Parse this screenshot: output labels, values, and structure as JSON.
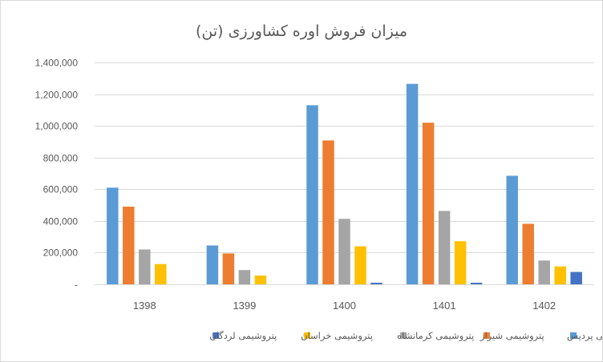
{
  "chart_data": {
    "type": "bar",
    "title": "میزان فروش اوره کشاورزی (تن)",
    "categories": [
      "1398",
      "1399",
      "1400",
      "1401",
      "1402"
    ],
    "series": [
      {
        "name": "پتروشیمی پردیس",
        "color": "#5b9bd5",
        "values": [
          610000,
          245000,
          1130000,
          1265000,
          685000
        ]
      },
      {
        "name": "پتروشیمی شیراز",
        "color": "#ed7d31",
        "values": [
          490000,
          195000,
          908000,
          1020000,
          382000
        ]
      },
      {
        "name": "پتروشیمی کرمانشاه",
        "color": "#a5a5a5",
        "values": [
          220000,
          90000,
          413000,
          463000,
          150000
        ]
      },
      {
        "name": "پتروشیمی خراسان",
        "color": "#ffc000",
        "values": [
          128000,
          55000,
          240000,
          272000,
          113000
        ]
      },
      {
        "name": "پتروشیمی لردگان",
        "color": "#4472c4",
        "values": [
          0,
          0,
          10000,
          10000,
          78000
        ]
      }
    ],
    "ylim": [
      0,
      1400000
    ],
    "yticks": [
      0,
      200000,
      400000,
      600000,
      800000,
      1000000,
      1200000,
      1400000
    ],
    "ytick_labels": [
      "-",
      "200,000",
      "400,000",
      "600,000",
      "800,000",
      "1,000,000",
      "1,200,000",
      "1,400,000"
    ],
    "grid": true,
    "legend": "bottom"
  }
}
